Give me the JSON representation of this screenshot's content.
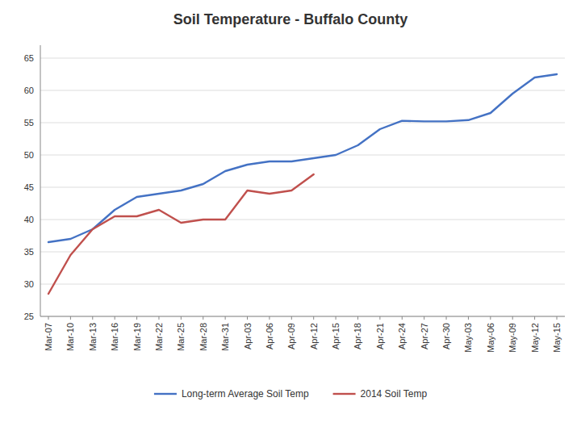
{
  "chart_data": {
    "type": "line",
    "title": "Soil Temperature - Buffalo County",
    "categories": [
      "Mar-07",
      "Mar-10",
      "Mar-13",
      "Mar-16",
      "Mar-19",
      "Mar-22",
      "Mar-25",
      "Mar-28",
      "Mar-31",
      "Apr-03",
      "Apr-06",
      "Apr-09",
      "Apr-12",
      "Apr-15",
      "Apr-18",
      "Apr-21",
      "Apr-24",
      "Apr-27",
      "Apr-30",
      "May-03",
      "May-06",
      "May-09",
      "May-12",
      "May-15"
    ],
    "series": [
      {
        "name": "Long-term Average Soil Temp",
        "color": "#4472C4",
        "values": [
          36.5,
          37.0,
          38.5,
          41.5,
          43.5,
          44.0,
          44.5,
          45.5,
          47.5,
          48.5,
          49.0,
          49.0,
          49.5,
          50.0,
          51.5,
          54.0,
          55.3,
          55.2,
          55.2,
          55.4,
          56.5,
          59.5,
          62.0,
          62.5
        ]
      },
      {
        "name": "2014 Soil Temp",
        "color": "#C0504D",
        "values": [
          28.5,
          34.5,
          38.5,
          40.5,
          40.5,
          41.5,
          39.5,
          40.0,
          40.0,
          44.5,
          44.0,
          44.5,
          47.0,
          null,
          null,
          null,
          null,
          null,
          null,
          null,
          null,
          null,
          null,
          null
        ]
      }
    ],
    "ylim": [
      25,
      67
    ],
    "yticks": [
      25,
      30,
      35,
      40,
      45,
      50,
      55,
      60,
      65
    ],
    "grid": true,
    "legend": "bottom"
  }
}
